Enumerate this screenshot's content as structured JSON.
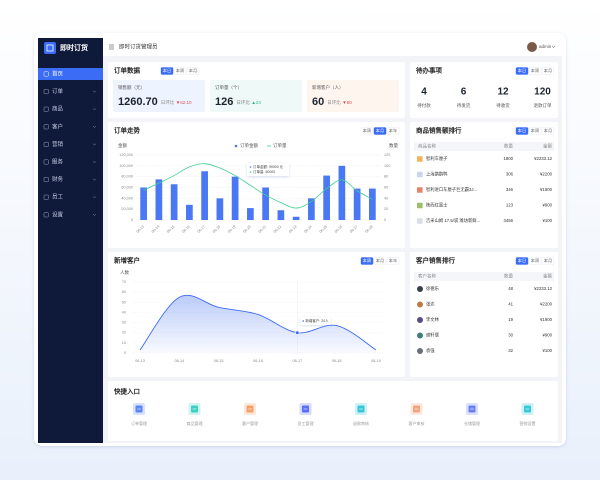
{
  "sidebar": {
    "logo": "即时订货",
    "menu": [
      "首页",
      "订单",
      "商品",
      "客户",
      "营销",
      "服务",
      "财务",
      "员工",
      "设置"
    ],
    "active": 0
  },
  "header": {
    "title": "即时订货管理员",
    "user": "admin"
  },
  "order_data": {
    "title": "订单数据",
    "tabs": [
      "本日",
      "本周",
      "本月"
    ],
    "active_tab": 0,
    "metrics": [
      {
        "label": "销售额（元）",
        "value": "1260.70",
        "compare_label": "日环比",
        "change": "▼62.10",
        "trend": "down"
      },
      {
        "label": "订单量（个）",
        "value": "126",
        "compare_label": "日环比",
        "change": "▲24",
        "trend": "up"
      },
      {
        "label": "新增客户（人）",
        "value": "60",
        "compare_label": "日环比",
        "change": "▼80",
        "trend": "down"
      }
    ]
  },
  "todo": {
    "title": "待办事项",
    "tabs": [
      "本日",
      "本周",
      "本月"
    ],
    "active_tab": 0,
    "items": [
      {
        "value": "4",
        "label": "待付款"
      },
      {
        "value": "6",
        "label": "待发货"
      },
      {
        "value": "12",
        "label": "待收货"
      },
      {
        "value": "120",
        "label": "退款订单"
      }
    ]
  },
  "order_trend": {
    "type": "bar",
    "title": "订单走势",
    "tabs": [
      "本周",
      "本月",
      "本年"
    ],
    "active_tab": 1,
    "y_label": "金额",
    "y2_label": "数量",
    "categories": [
      "06-13",
      "06-14",
      "06-15",
      "06-16",
      "06-17",
      "06-18",
      "06-19",
      "06-20",
      "06-21",
      "06-22",
      "06-23",
      "06-24",
      "06-25",
      "06-26",
      "06-27",
      "06-28"
    ],
    "series": [
      {
        "name": "订单金额",
        "color": "#4a78f5",
        "values": [
          60000,
          75000,
          66000,
          28000,
          90000,
          40000,
          80000,
          22000,
          60000,
          18000,
          6000,
          40000,
          82000,
          100000,
          58000,
          58000
        ]
      },
      {
        "name": "订单量",
        "color": "#3ecf8e",
        "axis": "y2",
        "values": [
          55,
          68,
          82,
          98,
          104,
          96,
          82,
          64,
          46,
          32,
          22,
          34,
          58,
          74,
          54,
          38
        ]
      }
    ],
    "ylim": [
      0,
      120000
    ],
    "yticks": [
      0,
      {
        "value": 20000,
        "label": "20,000"
      },
      {
        "value": 40000,
        "label": "40,000"
      },
      {
        "value": 60000,
        "label": "60,000"
      },
      {
        "value": 80000,
        "label": "80,000"
      },
      {
        "value": 100000,
        "label": "100,000"
      },
      {
        "value": 120000,
        "label": "120,000"
      }
    ],
    "y2lim": [
      0,
      120
    ],
    "y2ticks": [
      0,
      20,
      40,
      60,
      80,
      100,
      120
    ],
    "grid": true,
    "tooltip": [
      "订单金额: 99000 元",
      "订单量: 50000"
    ]
  },
  "product_ranking": {
    "title": "商品销售额排行",
    "tabs": [
      "本日",
      "本周",
      "本月"
    ],
    "active_tab": 0,
    "columns": [
      "商品名称",
      "数量",
      "金额"
    ],
    "rows": [
      [
        "智利车厘子",
        "1800",
        "¥2233.12"
      ],
      [
        "上海鹅鹅鸭",
        "306",
        "¥2200"
      ],
      [
        "智利进口车厘子巨无霸3J...",
        "346",
        "¥1900"
      ],
      [
        "陕西红富士",
        "123",
        "¥900"
      ],
      [
        "吉米山姆 17.5/袋 潍坊新鲜...",
        "3456",
        "¥100"
      ]
    ]
  },
  "new_customers": {
    "type": "area",
    "title": "新增客户",
    "tabs": [
      "本周",
      "本月",
      "本年"
    ],
    "active_tab": 0,
    "y_label": "人数",
    "categories": [
      "06-13",
      "06-14",
      "06-15",
      "06-16",
      "06-17",
      "06-18",
      "06-19"
    ],
    "series": [
      {
        "name": "新增客户",
        "color": "#3d6cf0",
        "values": [
          3,
          55,
          45,
          38,
          20,
          27,
          3
        ]
      }
    ],
    "ylim": [
      0,
      70
    ],
    "yticks": [
      0,
      10,
      20,
      30,
      40,
      50,
      60,
      70
    ],
    "grid": true,
    "tooltip": [
      "新增客户: 20人"
    ]
  },
  "customer_ranking": {
    "title": "客户销售排行",
    "tabs": [
      "本日",
      "本周",
      "本月"
    ],
    "active_tab": 0,
    "columns": [
      "客户名称",
      "数量",
      "金额"
    ],
    "rows": [
      [
        "徐德乐",
        "48",
        "¥2233.12"
      ],
      [
        "张达",
        "41",
        "¥2200"
      ],
      [
        "李文林",
        "19",
        "¥1900"
      ],
      [
        "谢轩儒",
        "30",
        "¥900"
      ],
      [
        "袁强",
        "32",
        "¥100"
      ]
    ]
  },
  "quick_entry": {
    "title": "快捷入口",
    "items": [
      "订单管理",
      "商品管理",
      "客户管理",
      "员工管理",
      "退款审核",
      "客户审核",
      "仓储管理",
      "营销设置"
    ]
  }
}
